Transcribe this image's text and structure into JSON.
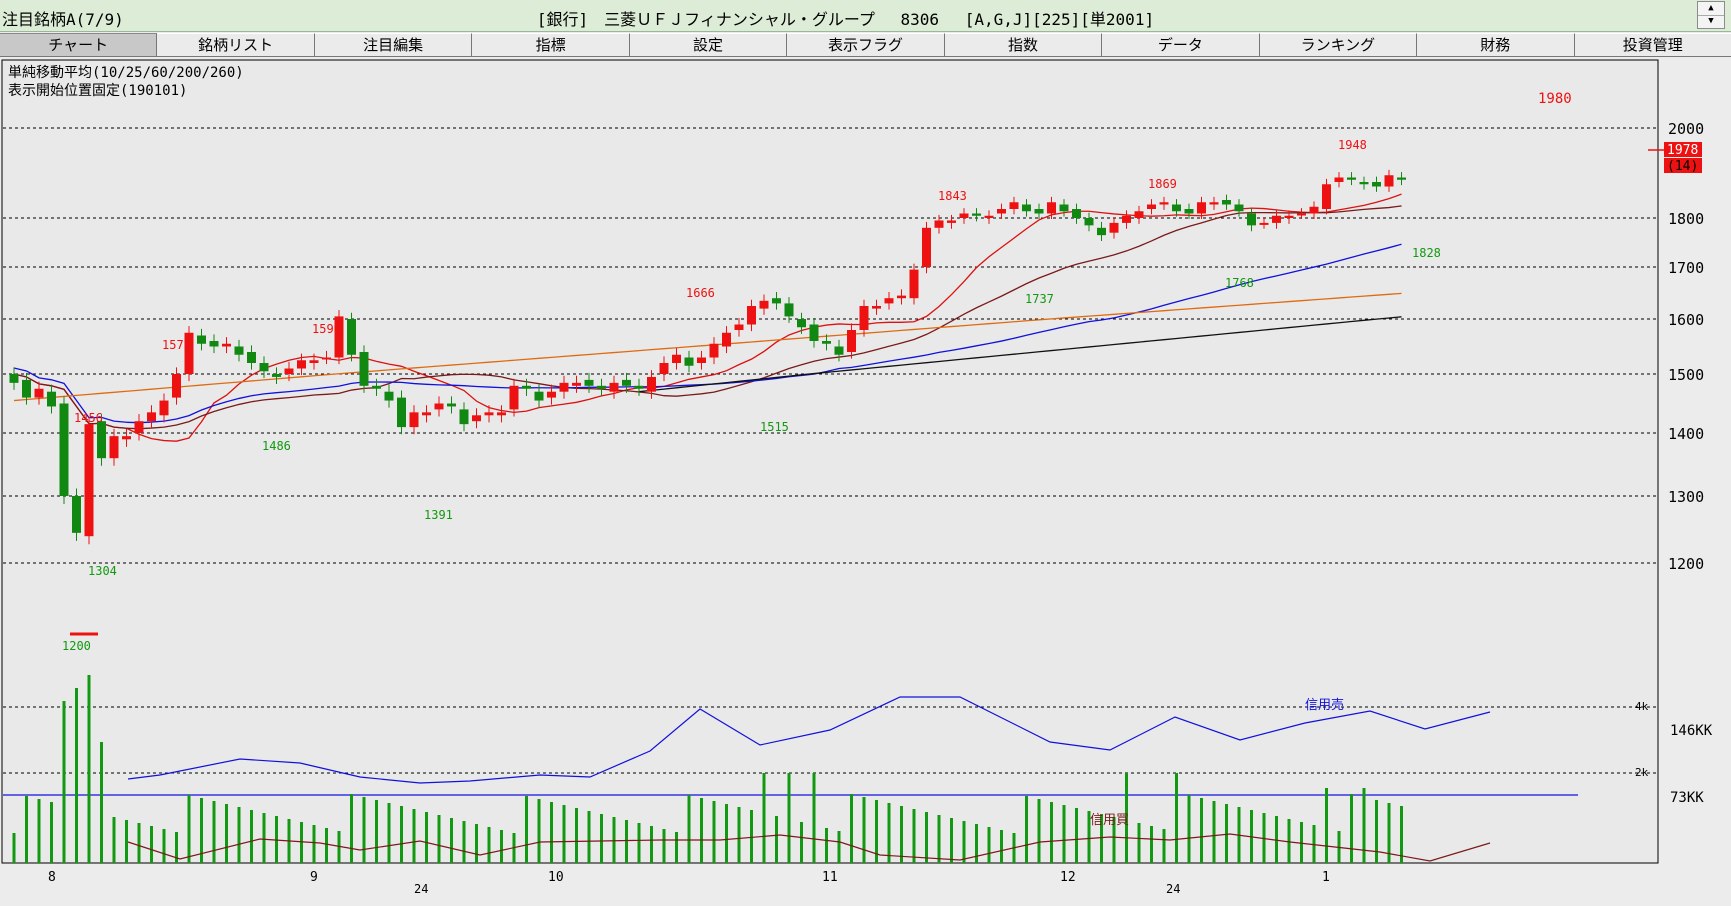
{
  "window": {
    "title_left": "注目銘柄A(7/9)",
    "title_center": "[銀行]　三菱ＵＦＪフィナンシャル・グループ　 8306　 [A,G,J][225][単2001]",
    "spinner_icon_up": "triangle-up-icon",
    "spinner_icon_down": "triangle-down-icon"
  },
  "tabs": [
    {
      "label": "チャート",
      "active": true
    },
    {
      "label": "銘柄リスト"
    },
    {
      "label": "注目編集"
    },
    {
      "label": "指標"
    },
    {
      "label": "設定"
    },
    {
      "label": "表示フラグ"
    },
    {
      "label": "指数"
    },
    {
      "label": "データ"
    },
    {
      "label": "ランキング"
    },
    {
      "label": "財務"
    },
    {
      "label": "投資管理"
    }
  ],
  "chart_data": {
    "type": "candlestick",
    "info_line1": "単純移動平均(10/25/60/200/260)",
    "info_line2": "表示開始位置固定(190101)",
    "price_axis": {
      "ticks": [
        1200,
        1300,
        1400,
        1500,
        1600,
        1700,
        1800,
        2000
      ],
      "ylim": [
        1150,
        2020
      ]
    },
    "price_marker_label": "1980",
    "last_price_label": "1978",
    "change_label": "(14)",
    "volume_axis": {
      "labels": [
        "146KK",
        "73KK"
      ],
      "inner_labels": [
        "4k",
        "2k"
      ]
    },
    "margin_sell_label": "信用売",
    "margin_buy_label": "信用買",
    "month_labels": [
      "8",
      "9",
      "10",
      "11",
      "12",
      "1"
    ],
    "year_labels": [
      "24",
      "24"
    ],
    "peak_labels": [
      {
        "text": "1456",
        "type": "high"
      },
      {
        "text": "1575",
        "type": "high"
      },
      {
        "text": "1599",
        "type": "high"
      },
      {
        "text": "1666",
        "type": "high"
      },
      {
        "text": "1843",
        "type": "high"
      },
      {
        "text": "1869",
        "type": "high"
      },
      {
        "text": "1948",
        "type": "high"
      },
      {
        "text": "1200",
        "type": "low"
      },
      {
        "text": "1304",
        "type": "low"
      },
      {
        "text": "1486",
        "type": "low"
      },
      {
        "text": "1391",
        "type": "low"
      },
      {
        "text": "1515",
        "type": "low"
      },
      {
        "text": "1737",
        "type": "low"
      },
      {
        "text": "1768",
        "type": "low"
      },
      {
        "text": "1828",
        "type": "low"
      }
    ],
    "colors": {
      "up": "#ee1111",
      "down": "#118811",
      "ma10": "#dd1111",
      "ma25": "#7a1a1a",
      "ma60": "#1111dd",
      "ma200": "#e06a10",
      "ma260": "#111111",
      "volume": "#119911",
      "grid": "#000000"
    }
  }
}
